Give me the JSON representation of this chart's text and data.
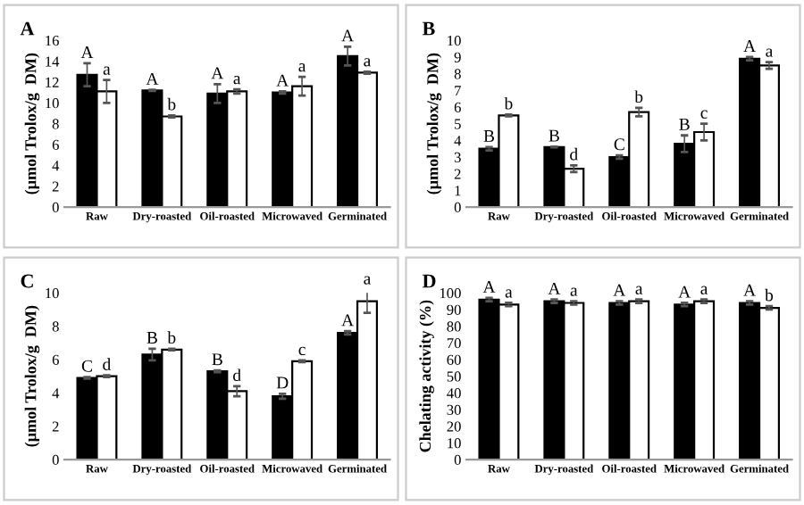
{
  "chart_data": [
    {
      "type": "bar",
      "title": "A",
      "ylabel": "(µmol Trolox/g  DM)",
      "categories": [
        "Raw",
        "Dry-roasted",
        "Oil-roasted",
        "Microwaved",
        "Germinated"
      ],
      "ylim": [
        0,
        16
      ],
      "yticks": [
        0,
        2,
        4,
        6,
        8,
        10,
        12,
        14,
        16
      ],
      "grid": false,
      "legend": false,
      "series": [
        {
          "color": "#000000",
          "values": [
            12.7,
            11.2,
            10.9,
            11.0,
            14.5
          ],
          "errors": [
            1.1,
            0.05,
            0.9,
            0.1,
            0.9
          ],
          "value_labels": [
            "A",
            "A",
            "A",
            "A",
            "A"
          ]
        },
        {
          "color": "#ffffff",
          "values": [
            11.1,
            8.7,
            11.1,
            11.6,
            12.9
          ],
          "errors": [
            1.1,
            0.1,
            0.2,
            0.9,
            0.1
          ],
          "value_labels": [
            "a",
            "b",
            "a",
            "a",
            "a"
          ]
        }
      ]
    },
    {
      "type": "bar",
      "title": "B",
      "ylabel": "(µmol Trolox/g  DM)",
      "categories": [
        "Raw",
        "Dry-roasted",
        "Oil-roasted",
        "Microwaved",
        "Germinated"
      ],
      "ylim": [
        0,
        10
      ],
      "yticks": [
        0,
        1,
        2,
        3,
        4,
        5,
        6,
        7,
        8,
        9,
        10
      ],
      "grid": false,
      "legend": false,
      "series": [
        {
          "color": "#000000",
          "values": [
            3.5,
            3.6,
            3.0,
            3.8,
            8.9
          ],
          "errors": [
            0.1,
            0.02,
            0.1,
            0.5,
            0.1
          ],
          "value_labels": [
            "B",
            "B",
            "C",
            "B",
            "A"
          ]
        },
        {
          "color": "#ffffff",
          "values": [
            5.5,
            2.3,
            5.7,
            4.5,
            8.5
          ],
          "errors": [
            0.05,
            0.2,
            0.25,
            0.5,
            0.2
          ],
          "value_labels": [
            "b",
            "d",
            "b",
            "c",
            "a"
          ]
        }
      ]
    },
    {
      "type": "bar",
      "title": "C",
      "ylabel": "(µmol Trolox/g  DM)",
      "categories": [
        "Raw",
        "Dry-roasted",
        "Oil-roasted",
        "Microwaved",
        "Germinated"
      ],
      "ylim": [
        0,
        10
      ],
      "yticks": [
        0,
        2,
        4,
        6,
        8,
        10
      ],
      "grid": false,
      "legend": false,
      "series": [
        {
          "color": "#000000",
          "values": [
            4.9,
            6.3,
            5.3,
            3.8,
            7.6
          ],
          "errors": [
            0.05,
            0.35,
            0.05,
            0.15,
            0.1
          ],
          "value_labels": [
            "C",
            "B",
            "B",
            "D",
            "A"
          ]
        },
        {
          "color": "#ffffff",
          "values": [
            5.0,
            6.6,
            4.1,
            5.9,
            9.5
          ],
          "errors": [
            0.05,
            0.05,
            0.3,
            0.05,
            0.7
          ],
          "value_labels": [
            "d",
            "b",
            "d",
            "c",
            "a"
          ]
        }
      ]
    },
    {
      "type": "bar",
      "title": "D",
      "ylabel": "Chelating activity (%)",
      "categories": [
        "Raw",
        "Dry-roasted",
        "Oil-roasted",
        "Microwaved",
        "Germinated"
      ],
      "ylim": [
        0,
        100
      ],
      "yticks": [
        0,
        10,
        20,
        30,
        40,
        50,
        60,
        70,
        80,
        90,
        100
      ],
      "grid": false,
      "legend": false,
      "series": [
        {
          "color": "#000000",
          "values": [
            96,
            95,
            94,
            93,
            94
          ],
          "errors": [
            1,
            1,
            1,
            1,
            1
          ],
          "value_labels": [
            "A",
            "A",
            "A",
            "A",
            "A"
          ]
        },
        {
          "color": "#ffffff",
          "values": [
            93,
            94,
            95,
            95,
            91
          ],
          "errors": [
            1,
            1,
            1,
            1,
            1
          ],
          "value_labels": [
            "a",
            "a",
            "a",
            "a",
            "b"
          ]
        }
      ]
    }
  ]
}
